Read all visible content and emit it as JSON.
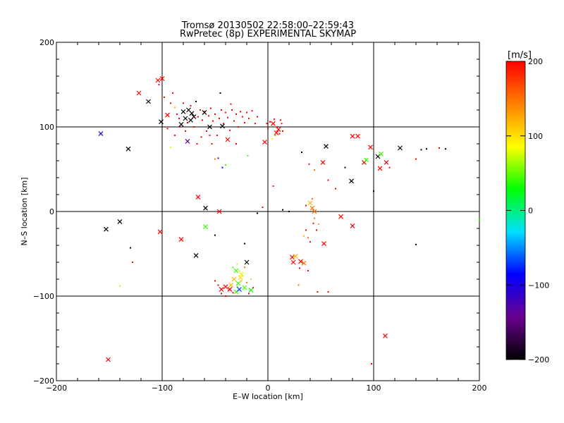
{
  "chart_data": {
    "type": "scatter",
    "title": "Tromsø 20130502 22:58:00–22:59:43",
    "subtitle": "RwPretec (8p) EXPERIMENTAL SKYMAP",
    "xlabel": "E–W location [km]",
    "ylabel": "N–S location [km]",
    "xlim": [
      -200,
      200
    ],
    "ylim": [
      -200,
      200
    ],
    "xticks": [
      -200,
      -100,
      0,
      100,
      200
    ],
    "yticks": [
      -200,
      -100,
      0,
      100,
      200
    ],
    "grid": true,
    "colorbar": {
      "label": "[m/s]",
      "range": [
        -200,
        200
      ],
      "ticks": [
        200,
        100,
        0,
        -100,
        -200
      ],
      "colors": [
        "#000000",
        "#6a0090",
        "#0000ff",
        "#00e0ff",
        "#00ff00",
        "#ffff00",
        "#ff8000",
        "#ff0000"
      ]
    },
    "series": [
      {
        "marker": "x",
        "points": [
          [
            -158,
            92,
            -110
          ],
          [
            -132,
            74,
            -200
          ],
          [
            -100,
            157,
            200
          ],
          [
            -104,
            155,
            200
          ],
          [
            -122,
            140,
            200
          ],
          [
            -113,
            130,
            -200
          ],
          [
            -101,
            106,
            -200
          ],
          [
            -95,
            114,
            200
          ],
          [
            -80,
            118,
            -200
          ],
          [
            -78,
            110,
            -200
          ],
          [
            -75,
            120,
            -200
          ],
          [
            -73,
            108,
            -200
          ],
          [
            -70,
            112,
            -200
          ],
          [
            -82,
            103,
            -200
          ],
          [
            -72,
            116,
            -200
          ],
          [
            -76,
            83,
            -150
          ],
          [
            -55,
            100,
            -200
          ],
          [
            -43,
            101,
            -200
          ],
          [
            -38,
            85,
            200
          ],
          [
            -60,
            117,
            -200
          ],
          [
            -3,
            82,
            200
          ],
          [
            10,
            97,
            200
          ],
          [
            5,
            104,
            200
          ],
          [
            8,
            93,
            200
          ],
          [
            55,
            77,
            -200
          ],
          [
            52,
            58,
            200
          ],
          [
            80,
            89,
            200
          ],
          [
            85,
            89,
            200
          ],
          [
            91,
            58,
            200
          ],
          [
            93,
            61,
            40
          ],
          [
            97,
            76,
            200
          ],
          [
            104,
            65,
            -200
          ],
          [
            107,
            68,
            40
          ],
          [
            106,
            51,
            200
          ],
          [
            112,
            58,
            200
          ],
          [
            125,
            75,
            -200
          ],
          [
            79,
            36,
            -200
          ],
          [
            -140,
            -12,
            -200
          ],
          [
            -153,
            -21,
            -200
          ],
          [
            -102,
            -24,
            200
          ],
          [
            -82,
            -33,
            200
          ],
          [
            -66,
            17,
            200
          ],
          [
            -59,
            4,
            -200
          ],
          [
            -59,
            -18,
            40
          ],
          [
            -68,
            -52,
            -200
          ],
          [
            -46,
            0,
            200
          ],
          [
            -20,
            -60,
            -200
          ],
          [
            40,
            10,
            120
          ],
          [
            42,
            4,
            150
          ],
          [
            44,
            0,
            150
          ],
          [
            69,
            -6,
            200
          ],
          [
            80,
            -17,
            200
          ],
          [
            23,
            -54,
            200
          ],
          [
            24,
            -60,
            200
          ],
          [
            26,
            -53,
            120
          ],
          [
            31,
            -59,
            200
          ],
          [
            34,
            -61,
            150
          ],
          [
            -30,
            -70,
            40
          ],
          [
            -25,
            -74,
            80
          ],
          [
            -26,
            -78,
            100
          ],
          [
            -32,
            -80,
            120
          ],
          [
            -36,
            -92,
            200
          ],
          [
            -35,
            -87,
            120
          ],
          [
            -28,
            -85,
            40
          ],
          [
            -30,
            -95,
            40
          ],
          [
            -27,
            -92,
            -70
          ],
          [
            -16,
            -93,
            30
          ],
          [
            -22,
            -90,
            40
          ],
          [
            -44,
            -92,
            200
          ],
          [
            -40,
            -89,
            200
          ],
          [
            53,
            -38,
            200
          ],
          [
            111,
            -147,
            200
          ],
          [
            -151,
            -175,
            200
          ]
        ]
      },
      {
        "marker": "dot",
        "points": [
          [
            -103,
            150,
            200
          ],
          [
            -98,
            135,
            200
          ],
          [
            -92,
            128,
            200
          ],
          [
            -90,
            140,
            200
          ],
          [
            -88,
            123,
            120
          ],
          [
            -86,
            115,
            200
          ],
          [
            -84,
            110,
            200
          ],
          [
            -83,
            100,
            200
          ],
          [
            -80,
            128,
            200
          ],
          [
            -78,
            95,
            200
          ],
          [
            -76,
            105,
            200
          ],
          [
            -73,
            125,
            200
          ],
          [
            -70,
            100,
            200
          ],
          [
            -68,
            130,
            -200
          ],
          [
            -66,
            112,
            200
          ],
          [
            -64,
            120,
            200
          ],
          [
            -62,
            108,
            200
          ],
          [
            -60,
            118,
            200
          ],
          [
            -58,
            95,
            200
          ],
          [
            -56,
            113,
            200
          ],
          [
            -54,
            122,
            200
          ],
          [
            -52,
            107,
            200
          ],
          [
            -50,
            115,
            200
          ],
          [
            -48,
            90,
            200
          ],
          [
            -46,
            110,
            200
          ],
          [
            -44,
            120,
            200
          ],
          [
            -42,
            104,
            200
          ],
          [
            -40,
            117,
            200
          ],
          [
            -38,
            111,
            200
          ],
          [
            -36,
            96,
            200
          ],
          [
            -34,
            120,
            200
          ],
          [
            -32,
            107,
            200
          ],
          [
            -30,
            115,
            200
          ],
          [
            -28,
            100,
            200
          ],
          [
            -26,
            118,
            200
          ],
          [
            -24,
            112,
            200
          ],
          [
            -22,
            105,
            200
          ],
          [
            -20,
            117,
            200
          ],
          [
            -18,
            110,
            200
          ],
          [
            -15,
            119,
            200
          ],
          [
            -12,
            104,
            200
          ],
          [
            -10,
            112,
            200
          ],
          [
            -35,
            127,
            200
          ],
          [
            -45,
            140,
            -200
          ],
          [
            -63,
            88,
            200
          ],
          [
            -67,
            80,
            200
          ],
          [
            -53,
            80,
            200
          ],
          [
            -47,
            63,
            -110
          ],
          [
            -43,
            52,
            -90
          ],
          [
            -30,
            80,
            200
          ],
          [
            -50,
            62,
            150
          ],
          [
            -55,
            90,
            200
          ],
          [
            -40,
            55,
            40
          ],
          [
            -19,
            66,
            40
          ],
          [
            -92,
            76,
            80
          ],
          [
            -88,
            90,
            200
          ],
          [
            -95,
            98,
            200
          ],
          [
            2,
            106,
            200
          ],
          [
            6,
            109,
            200
          ],
          [
            9,
            100,
            200
          ],
          [
            12,
            108,
            200
          ],
          [
            14,
            95,
            200
          ],
          [
            7,
            90,
            40
          ],
          [
            0,
            98,
            200
          ],
          [
            4,
            86,
            80
          ],
          [
            -1,
            104,
            200
          ],
          [
            11,
            92,
            200
          ],
          [
            13,
            104,
            200
          ],
          [
            32,
            70,
            -200
          ],
          [
            39,
            56,
            200
          ],
          [
            44,
            49,
            150
          ],
          [
            57,
            37,
            200
          ],
          [
            64,
            27,
            200
          ],
          [
            73,
            52,
            -200
          ],
          [
            100,
            24,
            -200
          ],
          [
            115,
            52,
            200
          ],
          [
            140,
            62,
            200
          ],
          [
            145,
            73,
            -200
          ],
          [
            150,
            74,
            -200
          ],
          [
            168,
            74,
            -200
          ],
          [
            162,
            75,
            200
          ],
          [
            200,
            -10,
            40
          ],
          [
            20,
            0,
            -200
          ],
          [
            14,
            2,
            -200
          ],
          [
            5,
            30,
            200
          ],
          [
            -10,
            -2,
            -200
          ],
          [
            -5,
            5,
            200
          ],
          [
            -22,
            -38,
            -200
          ],
          [
            -50,
            -28,
            -200
          ],
          [
            -130,
            -43,
            -200
          ],
          [
            -128,
            -60,
            200
          ],
          [
            -140,
            -88,
            100
          ],
          [
            -50,
            -82,
            200
          ],
          [
            -47,
            -87,
            200
          ],
          [
            -44,
            -97,
            200
          ],
          [
            -40,
            -100,
            200
          ],
          [
            -37,
            -93,
            200
          ],
          [
            -33,
            -96,
            200
          ],
          [
            -29,
            -89,
            40
          ],
          [
            -25,
            -82,
            120
          ],
          [
            -24,
            -76,
            120
          ],
          [
            -27,
            -70,
            100
          ],
          [
            -20,
            -84,
            150
          ],
          [
            -16,
            -80,
            100
          ],
          [
            -22,
            -66,
            150
          ],
          [
            -29,
            -62,
            100
          ],
          [
            -33,
            -66,
            40
          ],
          [
            -18,
            -97,
            200
          ],
          [
            -14,
            -90,
            200
          ],
          [
            38,
            -31,
            150
          ],
          [
            36,
            -22,
            200
          ],
          [
            40,
            -36,
            200
          ],
          [
            34,
            -29,
            120
          ],
          [
            43,
            -14,
            200
          ],
          [
            46,
            -22,
            200
          ],
          [
            48,
            -15,
            120
          ],
          [
            44,
            -8,
            150
          ],
          [
            42,
            15,
            150
          ],
          [
            36,
            7,
            200
          ],
          [
            29,
            -87,
            150
          ],
          [
            30,
            -67,
            200
          ],
          [
            38,
            -70,
            200
          ],
          [
            47,
            -95,
            200
          ],
          [
            57,
            -95,
            200
          ],
          [
            140,
            -39,
            -200
          ],
          [
            98,
            -180,
            200
          ]
        ]
      }
    ]
  }
}
